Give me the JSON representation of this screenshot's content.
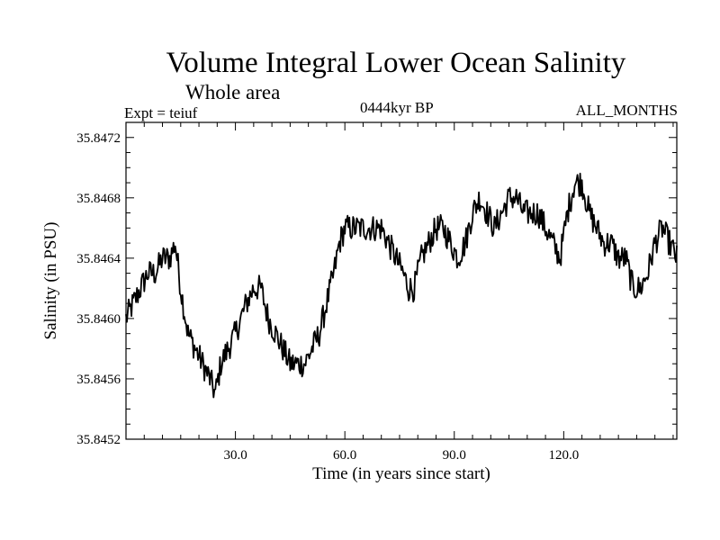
{
  "header": {
    "title": "Volume Integral Lower Ocean Salinity",
    "subtitle": "Whole area",
    "experiment": "Expt = teiuf",
    "period": "0444kyr BP",
    "months": "ALL_MONTHS"
  },
  "chart_data": {
    "type": "line",
    "title": "Volume Integral Lower Ocean Salinity",
    "subtitle": "Whole area",
    "xlabel": "Time (in years since start)",
    "ylabel": "Salinity (in PSU)",
    "xlim": [
      0,
      151
    ],
    "ylim": [
      35.8452,
      35.8473
    ],
    "x_ticks": [
      30,
      60,
      90,
      120
    ],
    "x_tick_labels": [
      "30.0",
      "60.0",
      "90.0",
      "120.0"
    ],
    "y_ticks": [
      35.8452,
      35.8456,
      35.846,
      35.8464,
      35.8468,
      35.8472
    ],
    "y_tick_labels": [
      "35.8452",
      "35.8456",
      "35.8460",
      "35.8464",
      "35.8468",
      "35.8472"
    ],
    "series": [
      {
        "name": "salinity",
        "x": [
          0,
          2,
          4,
          6,
          8,
          10,
          12,
          13.5,
          15,
          17,
          19,
          21,
          23,
          24.5,
          26,
          28,
          30,
          33,
          35,
          37,
          39,
          41,
          43,
          45,
          47,
          49,
          51,
          53,
          55,
          57,
          58.5,
          60,
          62,
          64,
          66,
          68,
          70,
          72,
          74,
          76,
          77.5,
          79,
          81,
          83,
          85,
          87,
          89,
          91,
          93,
          95,
          97,
          99,
          101,
          103,
          105,
          107,
          109,
          111,
          113,
          115,
          117,
          119,
          121,
          123,
          125,
          127,
          129,
          131,
          133,
          135,
          137,
          139,
          141,
          143,
          145,
          147,
          149,
          151
        ],
        "y": [
          35.846,
          35.8461,
          35.8462,
          35.8463,
          35.8463,
          35.8464,
          35.8464,
          35.8465,
          35.8462,
          35.8459,
          35.8458,
          35.8457,
          35.8456,
          35.8455,
          35.8457,
          35.8458,
          35.8459,
          35.8461,
          35.8462,
          35.8462,
          35.846,
          35.8459,
          35.8458,
          35.8457,
          35.8457,
          35.8457,
          35.8458,
          35.8459,
          35.8461,
          35.8463,
          35.8465,
          35.8466,
          35.8466,
          35.8466,
          35.8466,
          35.8466,
          35.8466,
          35.8465,
          35.8464,
          35.8463,
          35.8462,
          35.8462,
          35.8464,
          35.8465,
          35.8466,
          35.8466,
          35.8465,
          35.8464,
          35.8465,
          35.8467,
          35.8468,
          35.8467,
          35.8466,
          35.8467,
          35.8468,
          35.8468,
          35.8467,
          35.8467,
          35.8467,
          35.8466,
          35.8465,
          35.8464,
          35.8467,
          35.8469,
          35.8469,
          35.8467,
          35.8466,
          35.8465,
          35.8465,
          35.8464,
          35.8464,
          35.8462,
          35.8462,
          35.8463,
          35.8465,
          35.8466,
          35.8465,
          35.8464
        ]
      }
    ]
  }
}
